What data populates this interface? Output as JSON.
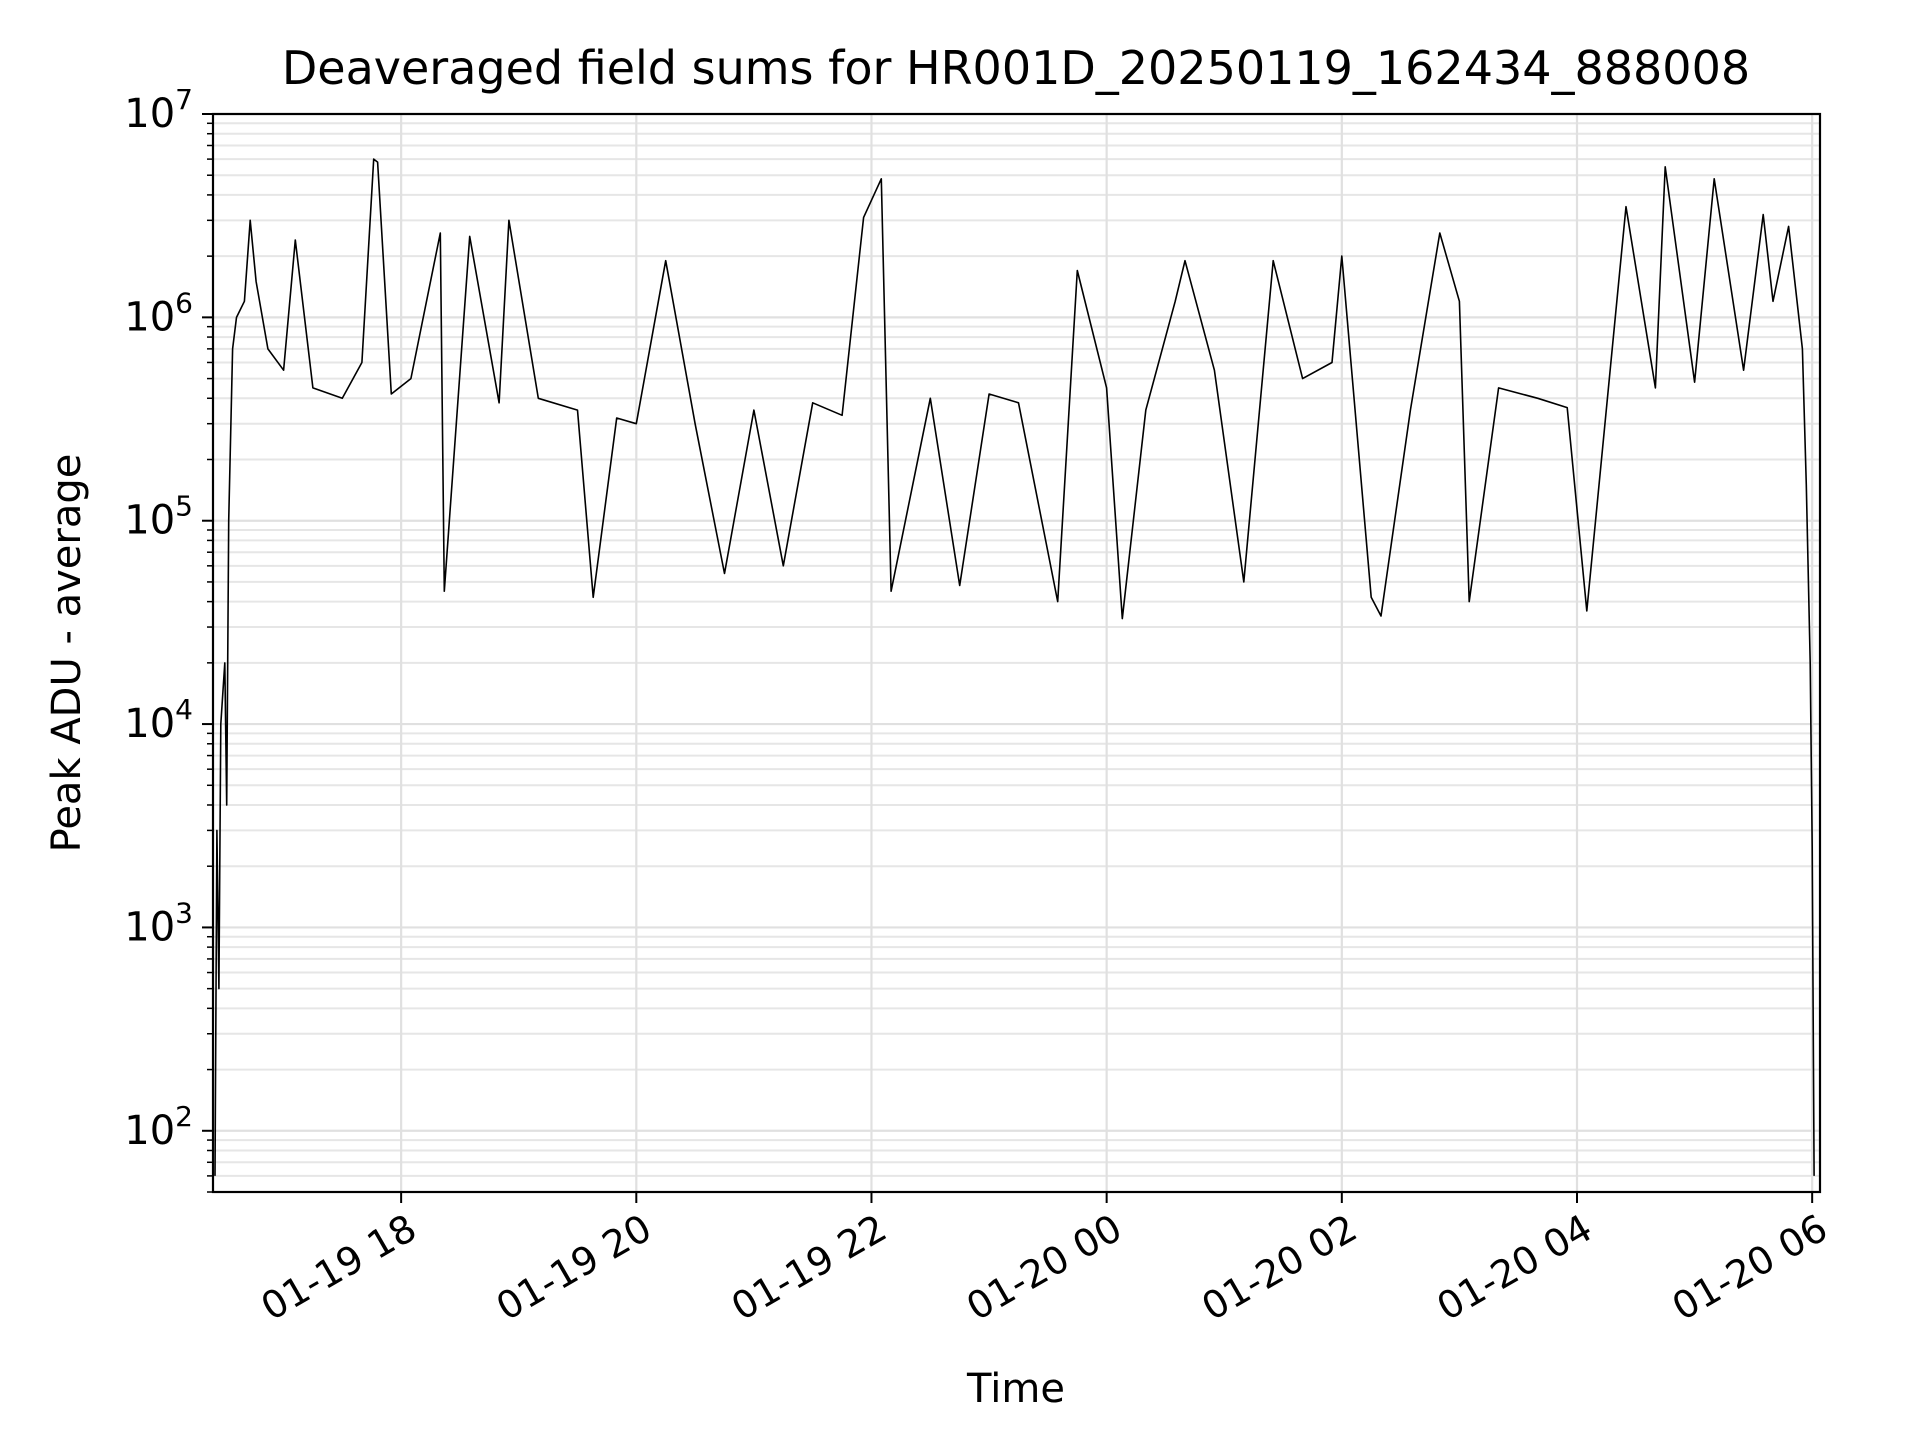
{
  "chart_data": {
    "type": "line",
    "title": "Deaveraged field sums for HR001D_20250119_162434_888008",
    "xlabel": "Time",
    "ylabel": "Peak ADU - average",
    "xlim": [
      "2025-01-19 16:24",
      "2025-01-20 06:04"
    ],
    "ylim": [
      50,
      10000000
    ],
    "yscale": "log",
    "grid": true,
    "line_color": "#000000",
    "x_ticks": [
      {
        "label": "01-19 18",
        "time": "2025-01-19 18:00"
      },
      {
        "label": "01-19 20",
        "time": "2025-01-19 20:00"
      },
      {
        "label": "01-19 22",
        "time": "2025-01-19 22:00"
      },
      {
        "label": "01-20 00",
        "time": "2025-01-20 00:00"
      },
      {
        "label": "01-20 02",
        "time": "2025-01-20 02:00"
      },
      {
        "label": "01-20 04",
        "time": "2025-01-20 04:00"
      },
      {
        "label": "01-20 06",
        "time": "2025-01-20 06:00"
      }
    ],
    "y_ticks": [
      {
        "base": "10",
        "exp": "2",
        "value": 100
      },
      {
        "base": "10",
        "exp": "3",
        "value": 1000
      },
      {
        "base": "10",
        "exp": "4",
        "value": 10000
      },
      {
        "base": "10",
        "exp": "5",
        "value": 100000
      },
      {
        "base": "10",
        "exp": "6",
        "value": 1000000
      },
      {
        "base": "10",
        "exp": "7",
        "value": 10000000
      }
    ],
    "series": [
      {
        "points": [
          [
            "2025-01-19 16:25",
            60
          ],
          [
            "2025-01-19 16:26",
            3000
          ],
          [
            "2025-01-19 16:27",
            500
          ],
          [
            "2025-01-19 16:28",
            10000
          ],
          [
            "2025-01-19 16:30",
            20000
          ],
          [
            "2025-01-19 16:31",
            4000
          ],
          [
            "2025-01-19 16:32",
            100000
          ],
          [
            "2025-01-19 16:34",
            700000
          ],
          [
            "2025-01-19 16:36",
            1000000
          ],
          [
            "2025-01-19 16:40",
            1200000
          ],
          [
            "2025-01-19 16:43",
            3000000
          ],
          [
            "2025-01-19 16:46",
            1500000
          ],
          [
            "2025-01-19 16:52",
            700000
          ],
          [
            "2025-01-19 17:00",
            550000
          ],
          [
            "2025-01-19 17:06",
            2400000
          ],
          [
            "2025-01-19 17:15",
            450000
          ],
          [
            "2025-01-19 17:30",
            400000
          ],
          [
            "2025-01-19 17:40",
            600000
          ],
          [
            "2025-01-19 17:46",
            6000000
          ],
          [
            "2025-01-19 17:48",
            5800000
          ],
          [
            "2025-01-19 17:55",
            420000
          ],
          [
            "2025-01-19 18:05",
            500000
          ],
          [
            "2025-01-19 18:20",
            2600000
          ],
          [
            "2025-01-19 18:22",
            45000
          ],
          [
            "2025-01-19 18:35",
            2500000
          ],
          [
            "2025-01-19 18:50",
            380000
          ],
          [
            "2025-01-19 18:55",
            3000000
          ],
          [
            "2025-01-19 19:10",
            400000
          ],
          [
            "2025-01-19 19:30",
            350000
          ],
          [
            "2025-01-19 19:38",
            42000
          ],
          [
            "2025-01-19 19:50",
            320000
          ],
          [
            "2025-01-19 20:00",
            300000
          ],
          [
            "2025-01-19 20:15",
            1900000
          ],
          [
            "2025-01-19 20:30",
            300000
          ],
          [
            "2025-01-19 20:45",
            55000
          ],
          [
            "2025-01-19 21:00",
            350000
          ],
          [
            "2025-01-19 21:15",
            60000
          ],
          [
            "2025-01-19 21:30",
            380000
          ],
          [
            "2025-01-19 21:45",
            330000
          ],
          [
            "2025-01-19 21:56",
            3100000
          ],
          [
            "2025-01-19 22:05",
            4800000
          ],
          [
            "2025-01-19 22:10",
            45000
          ],
          [
            "2025-01-19 22:30",
            400000
          ],
          [
            "2025-01-19 22:45",
            48000
          ],
          [
            "2025-01-19 23:00",
            420000
          ],
          [
            "2025-01-19 23:15",
            380000
          ],
          [
            "2025-01-19 23:35",
            40000
          ],
          [
            "2025-01-19 23:45",
            1700000
          ],
          [
            "2025-01-20 00:00",
            450000
          ],
          [
            "2025-01-20 00:08",
            33000
          ],
          [
            "2025-01-20 00:20",
            350000
          ],
          [
            "2025-01-20 00:35",
            1200000
          ],
          [
            "2025-01-20 00:40",
            1900000
          ],
          [
            "2025-01-20 00:55",
            550000
          ],
          [
            "2025-01-20 01:10",
            50000
          ],
          [
            "2025-01-20 01:25",
            1900000
          ],
          [
            "2025-01-20 01:40",
            500000
          ],
          [
            "2025-01-20 01:55",
            600000
          ],
          [
            "2025-01-20 02:00",
            2000000
          ],
          [
            "2025-01-20 02:15",
            42000
          ],
          [
            "2025-01-20 02:20",
            34000
          ],
          [
            "2025-01-20 02:35",
            350000
          ],
          [
            "2025-01-20 02:50",
            2600000
          ],
          [
            "2025-01-20 03:00",
            1200000
          ],
          [
            "2025-01-20 03:05",
            40000
          ],
          [
            "2025-01-20 03:20",
            450000
          ],
          [
            "2025-01-20 03:40",
            400000
          ],
          [
            "2025-01-20 03:55",
            360000
          ],
          [
            "2025-01-20 04:05",
            36000
          ],
          [
            "2025-01-20 04:25",
            3500000
          ],
          [
            "2025-01-20 04:40",
            450000
          ],
          [
            "2025-01-20 04:45",
            5500000
          ],
          [
            "2025-01-20 05:00",
            480000
          ],
          [
            "2025-01-20 05:10",
            4800000
          ],
          [
            "2025-01-20 05:25",
            550000
          ],
          [
            "2025-01-20 05:35",
            3200000
          ],
          [
            "2025-01-20 05:40",
            1200000
          ],
          [
            "2025-01-20 05:48",
            2800000
          ],
          [
            "2025-01-20 05:55",
            700000
          ],
          [
            "2025-01-20 05:57",
            150000
          ],
          [
            "2025-01-20 05:59",
            20000
          ],
          [
            "2025-01-20 06:00",
            2500
          ],
          [
            "2025-01-20 06:01",
            60
          ]
        ]
      }
    ]
  }
}
